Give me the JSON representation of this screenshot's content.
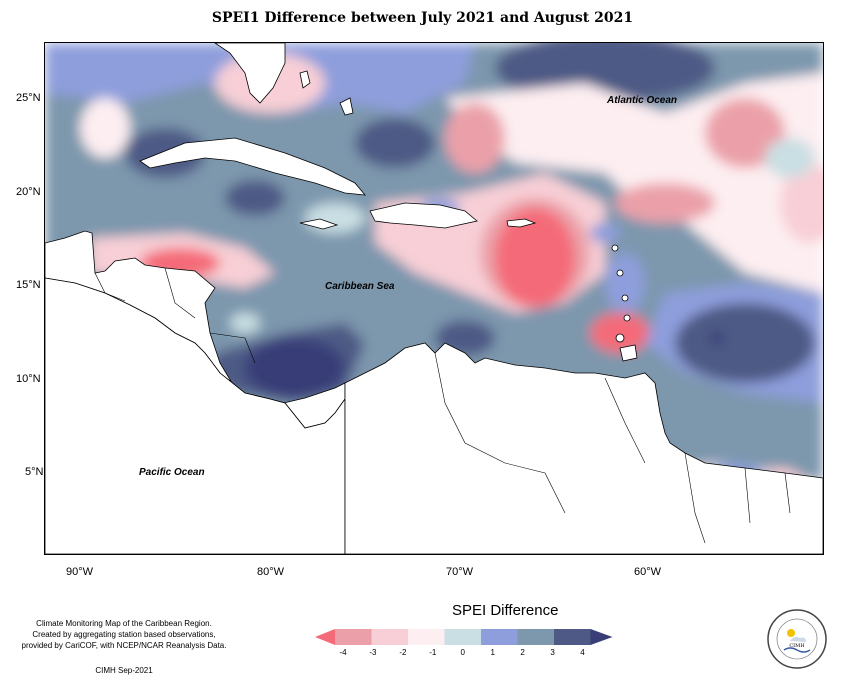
{
  "title": "SPEI1 Difference between July 2021 and August 2021",
  "axes": {
    "lat_labels": [
      "25°N",
      "20°N",
      "15°N",
      "10°N",
      "5°N"
    ],
    "lon_labels": [
      "90°W",
      "80°W",
      "70°W",
      "60°W"
    ]
  },
  "map_labels": {
    "atlantic": "Atlantic Ocean",
    "caribbean": "Caribbean Sea",
    "pacific": "Pacific Ocean"
  },
  "footer": {
    "line1": "Climate Monitoring Map of the Caribbean Region.",
    "line2": "Created by aggregating station based observations,",
    "line3": "provided by CariCOF, with NCEP/NCAR Reanalysis Data.",
    "credit": "CIMH  Sep-2021"
  },
  "legend": {
    "title": "SPEI Difference",
    "ticks": [
      "-4",
      "-3",
      "-2",
      "-1",
      "0",
      "1",
      "2",
      "3",
      "4"
    ],
    "colors": [
      "#f46a78",
      "#eba0a9",
      "#f8cfd6",
      "#fdeef1",
      "#c9dfe3",
      "#8e9edc",
      "#7d97ad",
      "#4e5a85",
      "#393e78"
    ]
  },
  "logo": {
    "top_text": "Caribbean Institute for",
    "bottom_text": "Meteorology and Hydrology",
    "abbr": "CIMH"
  }
}
